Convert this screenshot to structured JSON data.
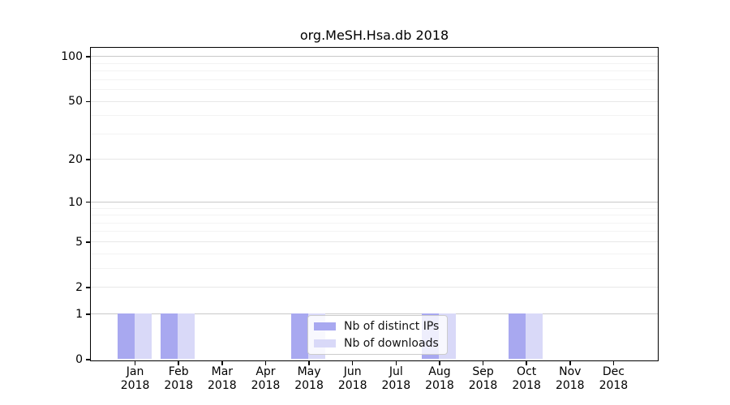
{
  "chart_data": {
    "type": "bar",
    "title": "org.MeSH.Hsa.db 2018",
    "categories": [
      "Jan 2018",
      "Feb 2018",
      "Mar 2018",
      "Apr 2018",
      "May 2018",
      "Jun 2018",
      "Jul 2018",
      "Aug 2018",
      "Sep 2018",
      "Oct 2018",
      "Nov 2018",
      "Dec 2018"
    ],
    "series": [
      {
        "name": "Nb of distinct IPs",
        "color": "#a8a8f0",
        "values": [
          1,
          1,
          0,
          0,
          1,
          0,
          0,
          1,
          0,
          1,
          0,
          0
        ]
      },
      {
        "name": "Nb of downloads",
        "color": "#d9d9f8",
        "values": [
          1,
          1,
          0,
          0,
          1,
          0,
          0,
          1,
          0,
          1,
          0,
          0
        ]
      }
    ],
    "xlabel": "",
    "ylabel": "",
    "yscale": "log1p",
    "ylim": [
      0,
      100
    ],
    "yticks": [
      0,
      1,
      2,
      5,
      10,
      20,
      50,
      100
    ],
    "minor_yticks": [
      3,
      4,
      6,
      7,
      8,
      9,
      30,
      40,
      60,
      70,
      80,
      90
    ],
    "grid": "horizontal",
    "legend": {
      "position": "inside-lower-middle",
      "entries": [
        "Nb of distinct IPs",
        "Nb of downloads"
      ]
    },
    "colors": {
      "decade_grid": "#c9c9c9",
      "major_grid": "#e7e7e7",
      "minor_grid": "#f3f3f3",
      "axis": "#000000",
      "legend_border": "#cccccc"
    }
  }
}
